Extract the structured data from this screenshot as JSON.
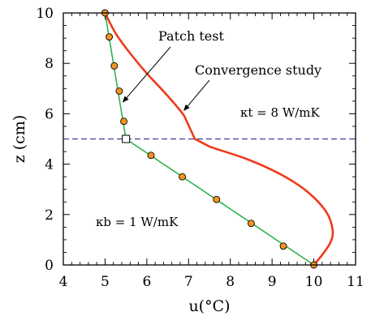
{
  "chart_data": {
    "type": "line",
    "xlabel": "u(°C)",
    "ylabel": "z (cm)",
    "xlim": [
      4,
      11
    ],
    "ylim": [
      0,
      10
    ],
    "xticks": [
      "4",
      "5",
      "6",
      "7",
      "8",
      "9",
      "10",
      "11"
    ],
    "yticks": [
      "0",
      "2",
      "4",
      "6",
      "8",
      "10"
    ],
    "grid": false,
    "series": [
      {
        "role": "analytical",
        "color": "#2db34a",
        "x": [
          10,
          5.5,
          5
        ],
        "y": [
          0,
          5,
          10
        ]
      },
      {
        "role": "patch-test",
        "color": "#f7941d",
        "x": [
          10.0,
          9.27,
          8.5,
          7.67,
          6.85,
          6.1,
          5.45,
          5.34,
          5.22,
          5.1,
          5.0
        ],
        "y": [
          0.0,
          0.75,
          1.65,
          2.6,
          3.5,
          4.35,
          5.7,
          6.9,
          7.9,
          9.05,
          10.0
        ]
      },
      {
        "role": "convergence-study",
        "color": "#ee3a1c",
        "x": [
          5.0,
          5.25,
          5.6,
          6.0,
          6.45,
          6.9,
          7.15,
          7.5,
          8.4,
          9.2,
          9.85,
          10.3,
          10.45,
          10.4,
          10.2,
          10.0
        ],
        "y": [
          10.0,
          9.2,
          8.4,
          7.6,
          6.8,
          5.9,
          5.0,
          4.7,
          4.2,
          3.6,
          2.9,
          2.1,
          1.4,
          0.9,
          0.4,
          0.0
        ]
      }
    ],
    "interface": {
      "z": 5,
      "color": "#3b3f8f",
      "style": "dashed"
    },
    "interface_marker": {
      "x": 5.5,
      "z": 5
    },
    "annotations": [
      {
        "text": "Patch test",
        "arrow_to": [
          5.35,
          6.4
        ]
      },
      {
        "text": "Convergence study",
        "arrow_to": [
          6.85,
          6.0
        ]
      }
    ],
    "labels": {
      "kappa_top": "κt = 8 W/mK",
      "kappa_bottom": "κb = 1 W/mK"
    }
  }
}
